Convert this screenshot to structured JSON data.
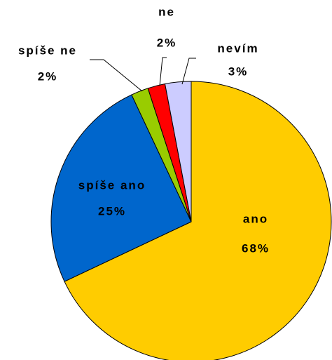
{
  "chart_data": {
    "type": "pie",
    "categories": [
      "ano",
      "spíše ano",
      "spíše ne",
      "ne",
      "nevím"
    ],
    "values": [
      68,
      25,
      2,
      2,
      3
    ],
    "value_labels": [
      "68%",
      "25%",
      "2%",
      "2%",
      "3%"
    ],
    "colors": [
      "#FFCC00",
      "#0066CC",
      "#99CC00",
      "#FF0000",
      "#CCCCFF"
    ]
  }
}
